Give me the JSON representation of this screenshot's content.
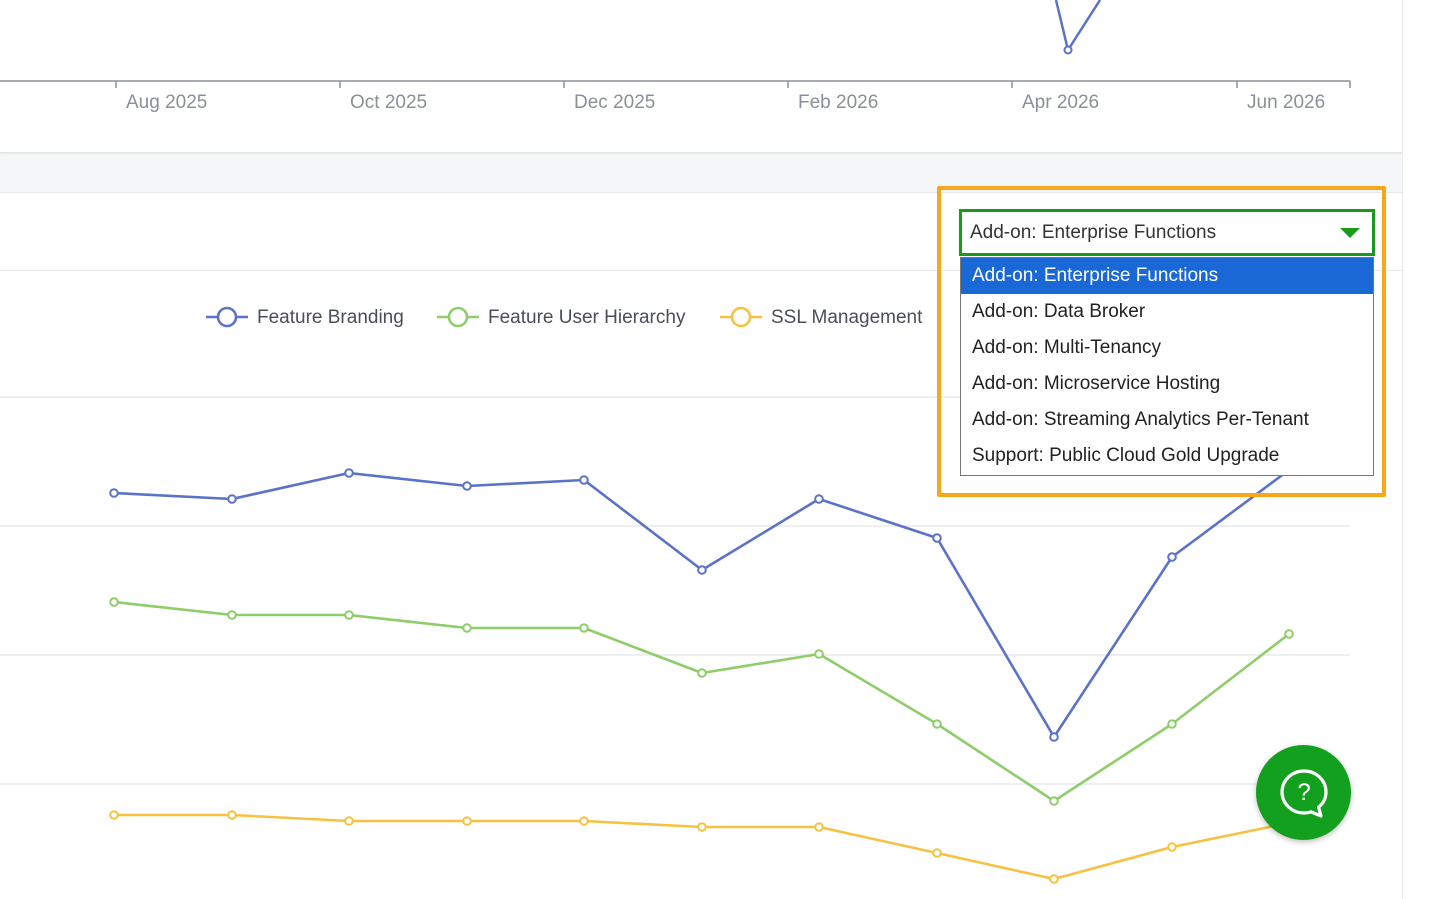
{
  "top_chart": {
    "x_ticks": [
      "Aug 2025",
      "Oct 2025",
      "Dec 2025",
      "Feb 2026",
      "Apr 2026",
      "Jun 2026"
    ]
  },
  "dropdown": {
    "selected": "Add-on: Enterprise Functions",
    "options": [
      "Add-on: Enterprise Functions",
      "Add-on: Data Broker",
      "Add-on: Multi-Tenancy",
      "Add-on: Microservice Hosting",
      "Add-on: Streaming Analytics Per-Tenant",
      "Support: Public Cloud Gold Upgrade"
    ]
  },
  "help": {
    "icon": "help-chat-icon"
  },
  "colors": {
    "branding": "#5b72c9",
    "hierarchy": "#8fcc6a",
    "ssl": "#f5c242",
    "highlight": "#f5a81c",
    "select_border": "#1a9a1a",
    "selected_option": "#1a68d6",
    "help_button": "#13a01f"
  },
  "chart_data": {
    "type": "line",
    "legend": {
      "placement": "top"
    },
    "grid": true,
    "series": [
      {
        "name": "Feature Branding",
        "color": "#5b72c9",
        "values": [
          493,
          499,
          473,
          486,
          480,
          570,
          499,
          538,
          737,
          557,
          470
        ]
      },
      {
        "name": "Feature User Hierarchy",
        "color": "#8fcc6a",
        "values": [
          602,
          615,
          615,
          628,
          628,
          673,
          654,
          724,
          801,
          724,
          634
        ]
      },
      {
        "name": "SSL Management",
        "color": "#f5c242",
        "values": [
          815,
          815,
          821,
          821,
          821,
          827,
          827,
          853,
          879,
          847,
          823
        ]
      }
    ]
  }
}
